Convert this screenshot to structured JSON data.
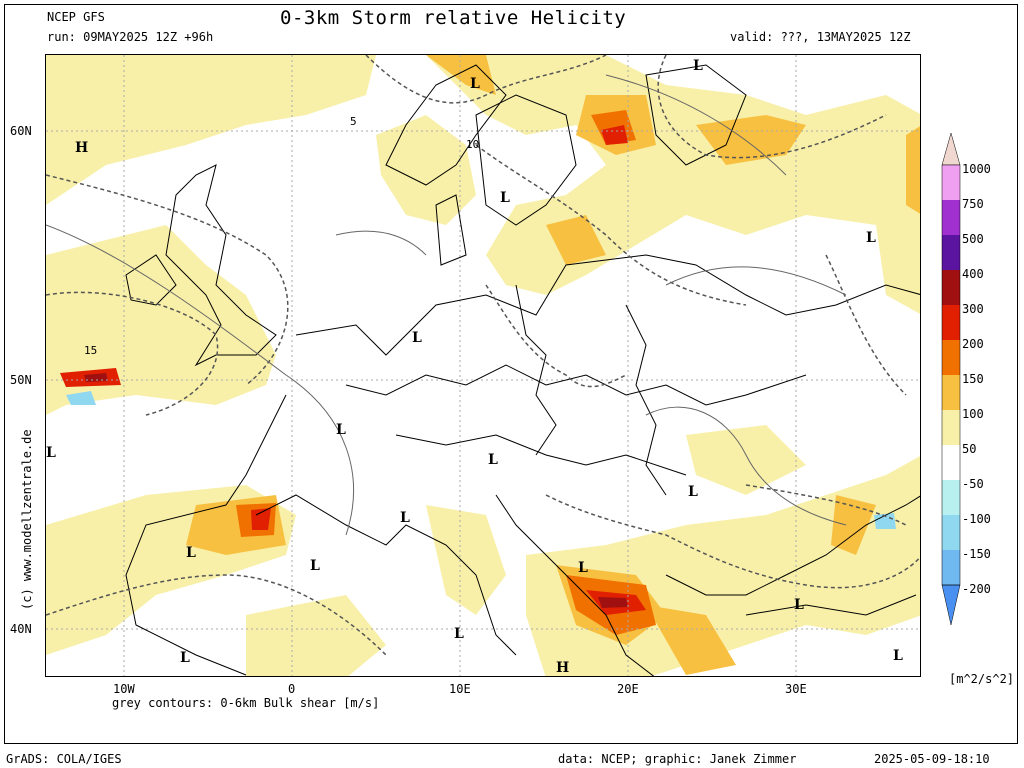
{
  "header": {
    "model": "NCEP GFS",
    "title": "0-3km Storm relative Helicity",
    "run": "run: 09MAY2025 12Z +96h",
    "valid": "valid: ???, 13MAY2025 12Z"
  },
  "axes": {
    "lat_labels": [
      "60N",
      "50N",
      "40N"
    ],
    "lon_labels": [
      "10W",
      "0",
      "10E",
      "20E",
      "30E"
    ]
  },
  "subtitle": "grey contours: 0-6km Bulk shear [m/s]",
  "copyright": "(c) www.modellzentrale.de",
  "colorbar": {
    "unit": "[m^2/s^2]",
    "levels": [
      "1000",
      "750",
      "500",
      "400",
      "300",
      "200",
      "150",
      "100",
      "50",
      "-50",
      "-100",
      "-150",
      "-200"
    ],
    "colors": {
      "c1000": "#f0d8d0",
      "c750": "#f0a0f0",
      "c500": "#a030d0",
      "c400": "#5a14a0",
      "c300": "#a01010",
      "c200": "#e02000",
      "c150": "#f07000",
      "c100": "#f8c040",
      "c50": "#f8f0a8",
      "c0": "#ffffff",
      "cm50": "#b8f0f0",
      "cm100": "#90d8f0",
      "cm150": "#70b8f0",
      "cm200": "#4a90f0"
    }
  },
  "pressure_centers": [
    {
      "label": "H"
    },
    {
      "label": "L"
    },
    {
      "label": "L"
    },
    {
      "label": "L"
    },
    {
      "label": "L"
    },
    {
      "label": "L"
    },
    {
      "label": "L"
    },
    {
      "label": "L"
    },
    {
      "label": "L"
    },
    {
      "label": "L"
    },
    {
      "label": "L"
    },
    {
      "label": "L"
    },
    {
      "label": "L"
    },
    {
      "label": "L"
    },
    {
      "label": "L"
    },
    {
      "label": "L"
    },
    {
      "label": "H"
    },
    {
      "label": "L"
    },
    {
      "label": "L"
    }
  ],
  "contour_labels": [
    "5",
    "10",
    "15"
  ],
  "footer": {
    "grads": "GrADS: COLA/IGES",
    "credit": "data: NCEP; graphic: Janek Zimmer",
    "timestamp": "2025-05-09-18:10"
  }
}
